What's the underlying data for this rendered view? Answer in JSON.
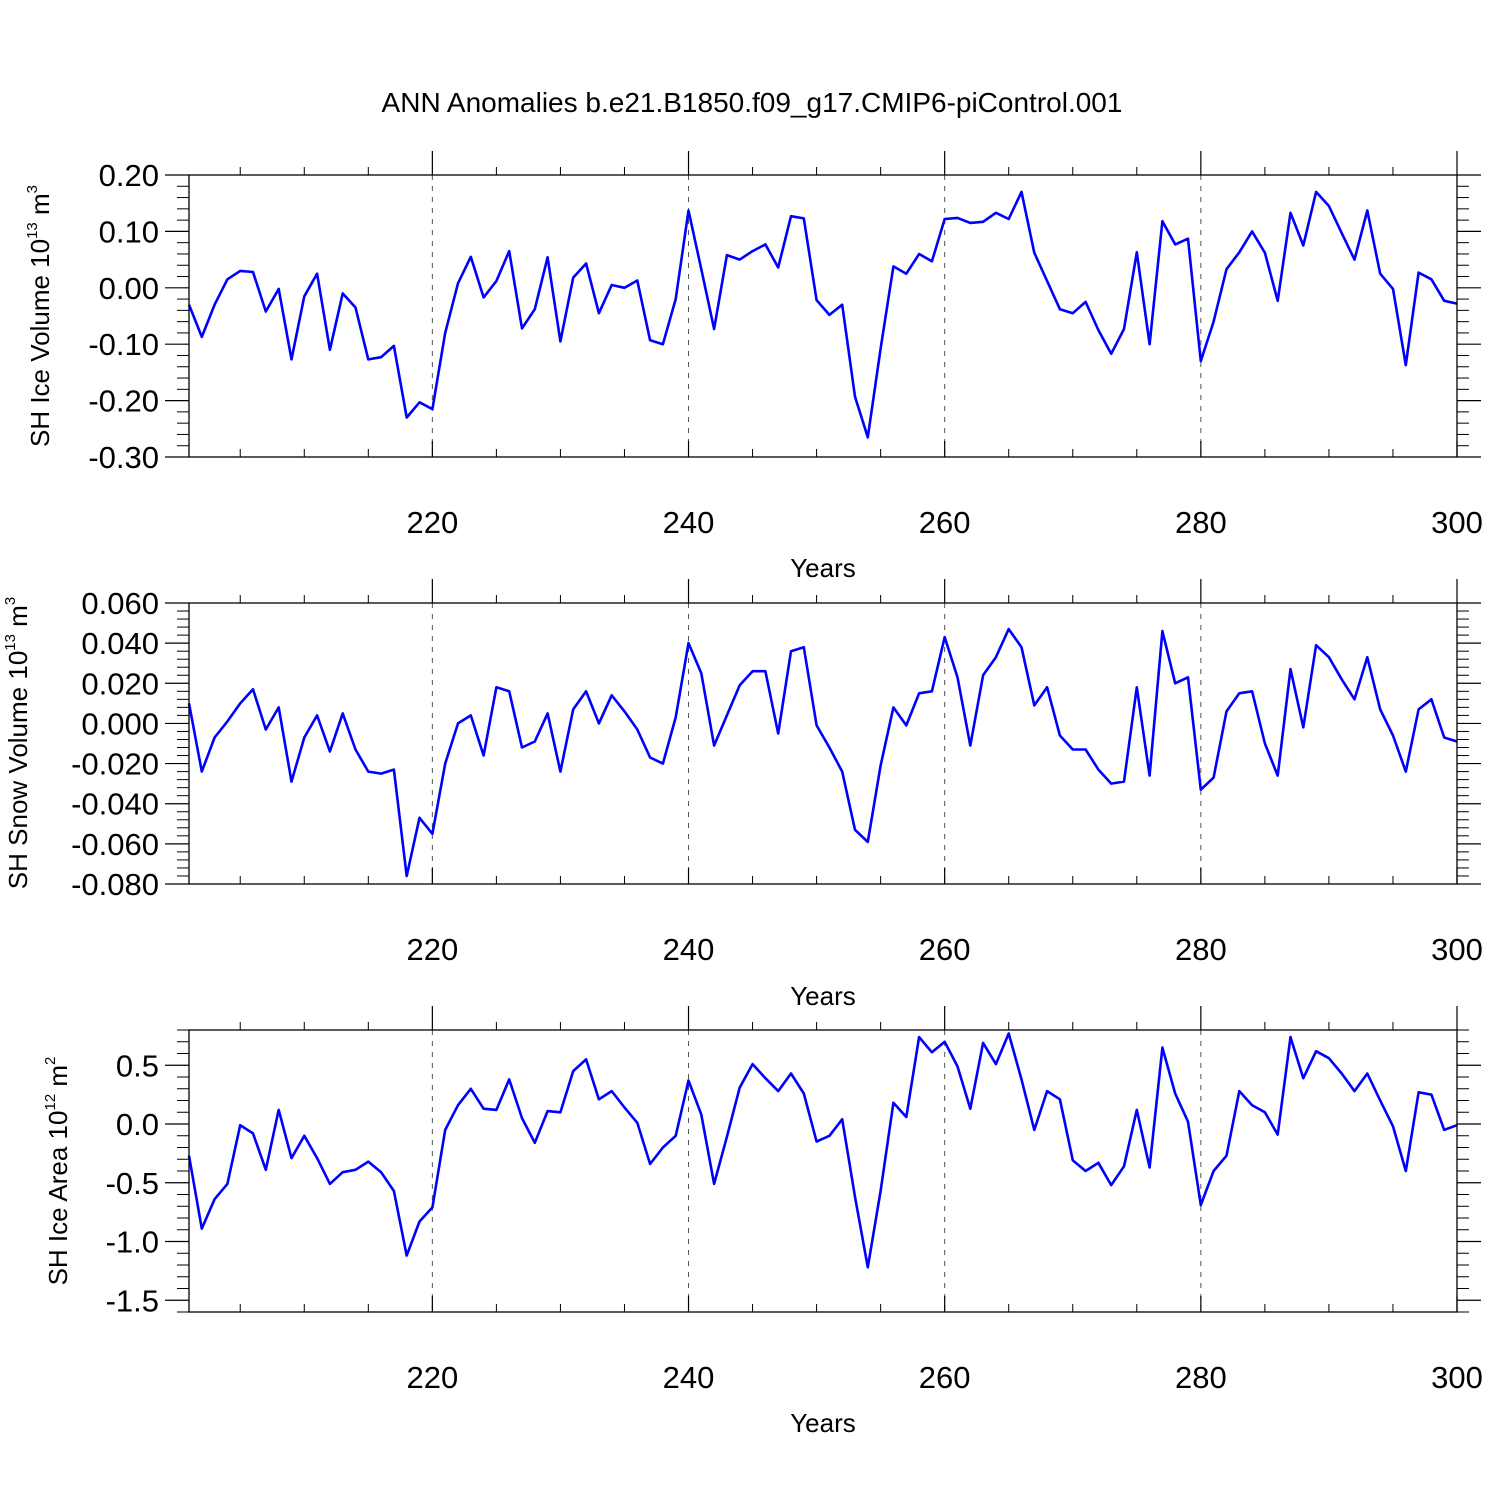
{
  "figure_title": "ANN Anomalies b.e21.B1850.f09_g17.CMIP6-piControl.001",
  "line_color": "#0000ff",
  "chart_data": [
    {
      "type": "line",
      "title": "",
      "xlabel": "Years",
      "ylabel": {
        "base": "SH Ice Volume 10",
        "exp": "13",
        "unit": " m",
        "unit_exp": "3"
      },
      "xlim": [
        201,
        300
      ],
      "ylim": [
        -0.3,
        0.2
      ],
      "x_ticks": [
        220,
        240,
        260,
        280,
        300
      ],
      "y_ticks": [
        -0.3,
        -0.2,
        -0.1,
        0.0,
        0.1,
        0.2
      ],
      "y_tick_labels": [
        "-0.30",
        "-0.20",
        "-0.10",
        "0.00",
        "0.10",
        "0.20"
      ],
      "grid": "dashed vertical at major x ticks",
      "x_start": 201,
      "values": [
        -0.03,
        -0.087,
        -0.03,
        0.015,
        0.03,
        0.028,
        -0.042,
        -0.002,
        -0.127,
        -0.015,
        0.025,
        -0.11,
        -0.01,
        -0.035,
        -0.127,
        -0.123,
        -0.103,
        -0.23,
        -0.203,
        -0.215,
        -0.08,
        0.008,
        0.055,
        -0.017,
        0.012,
        0.065,
        -0.072,
        -0.038,
        0.054,
        -0.095,
        0.018,
        0.043,
        -0.045,
        0.005,
        0.0,
        0.013,
        -0.093,
        -0.1,
        -0.02,
        0.137,
        0.033,
        -0.073,
        0.058,
        0.05,
        0.065,
        0.077,
        0.036,
        0.127,
        0.123,
        -0.022,
        -0.048,
        -0.03,
        -0.193,
        -0.265,
        -0.108,
        0.038,
        0.025,
        0.06,
        0.047,
        0.122,
        0.124,
        0.115,
        0.117,
        0.133,
        0.122,
        0.17,
        0.062,
        0.012,
        -0.038,
        -0.045,
        -0.025,
        -0.075,
        -0.117,
        -0.073,
        0.063,
        -0.1,
        0.118,
        0.077,
        0.087,
        -0.13,
        -0.06,
        0.033,
        0.063,
        0.1,
        0.062,
        -0.023,
        0.133,
        0.075,
        0.17,
        0.145,
        0.097,
        0.05,
        0.137,
        0.025,
        -0.002,
        -0.137,
        0.027,
        0.015,
        -0.023,
        -0.028
      ]
    },
    {
      "type": "line",
      "title": "",
      "xlabel": "Years",
      "ylabel": {
        "base": "SH Snow Volume 10",
        "exp": "13",
        "unit": " m",
        "unit_exp": "3"
      },
      "xlim": [
        201,
        300
      ],
      "ylim": [
        -0.08,
        0.06
      ],
      "x_ticks": [
        220,
        240,
        260,
        280,
        300
      ],
      "y_ticks": [
        -0.08,
        -0.06,
        -0.04,
        -0.02,
        0.0,
        0.02,
        0.04,
        0.06
      ],
      "y_tick_labels": [
        "-0.080",
        "-0.060",
        "-0.040",
        "-0.020",
        "0.000",
        "0.020",
        "0.040",
        "0.060"
      ],
      "grid": "dashed vertical at major x ticks",
      "x_start": 201,
      "values": [
        0.01,
        -0.024,
        -0.007,
        0.001,
        0.01,
        0.017,
        -0.003,
        0.008,
        -0.029,
        -0.007,
        0.004,
        -0.014,
        0.005,
        -0.013,
        -0.024,
        -0.025,
        -0.023,
        -0.076,
        -0.047,
        -0.055,
        -0.02,
        0.0,
        0.004,
        -0.016,
        0.018,
        0.016,
        -0.012,
        -0.009,
        0.005,
        -0.024,
        0.007,
        0.016,
        0.0,
        0.014,
        0.006,
        -0.003,
        -0.017,
        -0.02,
        0.003,
        0.04,
        0.025,
        -0.011,
        0.004,
        0.019,
        0.026,
        0.026,
        -0.005,
        0.036,
        0.038,
        -0.001,
        -0.012,
        -0.024,
        -0.053,
        -0.059,
        -0.021,
        0.008,
        -0.001,
        0.015,
        0.016,
        0.043,
        0.023,
        -0.011,
        0.024,
        0.033,
        0.047,
        0.038,
        0.009,
        0.018,
        -0.006,
        -0.013,
        -0.013,
        -0.023,
        -0.03,
        -0.029,
        0.018,
        -0.026,
        0.046,
        0.02,
        0.023,
        -0.033,
        -0.027,
        0.006,
        0.015,
        0.016,
        -0.01,
        -0.026,
        0.027,
        -0.002,
        0.039,
        0.033,
        0.022,
        0.012,
        0.033,
        0.007,
        -0.006,
        -0.024,
        0.007,
        0.012,
        -0.007,
        -0.009
      ]
    },
    {
      "type": "line",
      "title": "",
      "xlabel": "Years",
      "ylabel": {
        "base": "SH Ice Area 10",
        "exp": "12",
        "unit": " m",
        "unit_exp": "2"
      },
      "xlim": [
        201,
        300
      ],
      "ylim": [
        -1.6,
        0.8
      ],
      "x_ticks": [
        220,
        240,
        260,
        280,
        300
      ],
      "y_ticks": [
        -1.5,
        -1.0,
        -0.5,
        0.0,
        0.5
      ],
      "y_tick_labels": [
        "-1.5",
        "-1.0",
        "-0.5",
        "0.0",
        "0.5"
      ],
      "grid": "dashed vertical at major x ticks",
      "x_start": 201,
      "values": [
        -0.27,
        -0.89,
        -0.64,
        -0.51,
        -0.01,
        -0.08,
        -0.39,
        0.12,
        -0.29,
        -0.1,
        -0.29,
        -0.51,
        -0.41,
        -0.39,
        -0.32,
        -0.41,
        -0.57,
        -1.12,
        -0.83,
        -0.71,
        -0.05,
        0.16,
        0.3,
        0.13,
        0.12,
        0.38,
        0.05,
        -0.16,
        0.11,
        0.1,
        0.45,
        0.55,
        0.21,
        0.28,
        0.14,
        0.01,
        -0.34,
        -0.2,
        -0.1,
        0.37,
        0.08,
        -0.51,
        -0.11,
        0.31,
        0.51,
        0.39,
        0.28,
        0.43,
        0.26,
        -0.15,
        -0.1,
        0.04,
        -0.62,
        -1.22,
        -0.57,
        0.18,
        0.06,
        0.74,
        0.61,
        0.7,
        0.49,
        0.13,
        0.69,
        0.51,
        0.77,
        0.38,
        -0.05,
        0.28,
        0.21,
        -0.31,
        -0.4,
        -0.33,
        -0.52,
        -0.36,
        0.12,
        -0.37,
        0.65,
        0.26,
        0.02,
        -0.69,
        -0.4,
        -0.27,
        0.28,
        0.16,
        0.1,
        -0.09,
        0.74,
        0.39,
        0.62,
        0.56,
        0.43,
        0.28,
        0.43,
        0.2,
        -0.02,
        -0.4,
        0.27,
        0.25,
        -0.05,
        -0.01
      ]
    }
  ]
}
